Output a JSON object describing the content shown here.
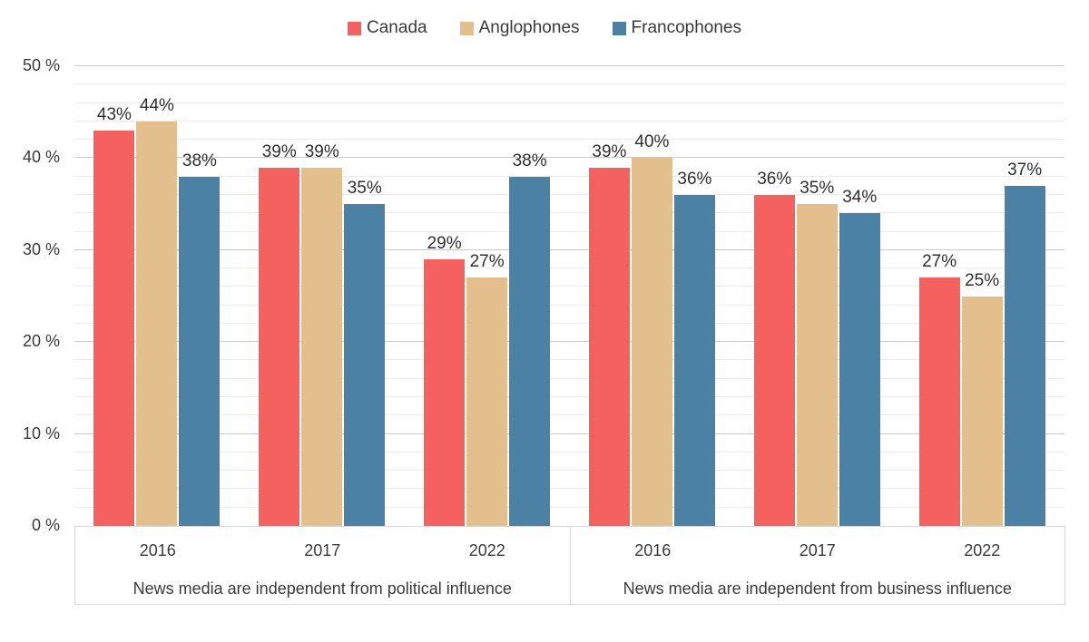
{
  "chart_data": {
    "type": "bar",
    "title": "",
    "legend_position": "top",
    "grid": {
      "major_step": 10,
      "minor_step": 2
    },
    "ylim": [
      0,
      50
    ],
    "yticks": [
      0,
      10,
      20,
      30,
      40,
      50
    ],
    "ytick_suffix": " %",
    "value_label_suffix": "%",
    "legend": [
      {
        "name": "Canada",
        "color": "#f4615e"
      },
      {
        "name": "Anglophones",
        "color": "#e2bf8d"
      },
      {
        "name": "Francophones",
        "color": "#4c81a6"
      }
    ],
    "panels": [
      {
        "label": "News media are independent from political influence",
        "categories": [
          "2016",
          "2017",
          "2022"
        ],
        "series": [
          {
            "name": "Canada",
            "values": [
              43,
              39,
              29
            ]
          },
          {
            "name": "Anglophones",
            "values": [
              44,
              39,
              27
            ]
          },
          {
            "name": "Francophones",
            "values": [
              38,
              35,
              38
            ]
          }
        ]
      },
      {
        "label": "News media are independent from business influence",
        "categories": [
          "2016",
          "2017",
          "2022"
        ],
        "series": [
          {
            "name": "Canada",
            "values": [
              39,
              36,
              27
            ]
          },
          {
            "name": "Anglophones",
            "values": [
              40,
              35,
              25
            ]
          },
          {
            "name": "Francophones",
            "values": [
              36,
              34,
              37
            ]
          }
        ]
      }
    ]
  }
}
